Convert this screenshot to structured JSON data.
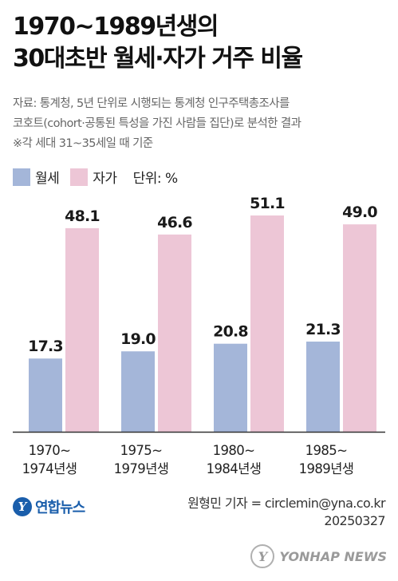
{
  "title_lines": [
    "1970~1989년생의",
    "30대초반 월세·자가 거주 비율"
  ],
  "subtitle_lines": [
    "자료: 통계청, 5년 단위로 시행되는 통계청 인구주택총조사를",
    "코호트(cohort·공통된 특성을 가진 사람들 집단)로 분석한 결과",
    "※각 세대 31~35세일 때 기준"
  ],
  "legend": {
    "wolse": "월세",
    "jaga": "자가",
    "unit": "단위: %"
  },
  "colors": {
    "wolse": "#a4b6d9",
    "jaga": "#edc6d6",
    "axis": "#333333"
  },
  "chart_data": {
    "type": "bar",
    "categories": [
      [
        "1970~",
        "1974년생"
      ],
      [
        "1975~",
        "1979년생"
      ],
      [
        "1980~",
        "1984년생"
      ],
      [
        "1985~",
        "1989년생"
      ]
    ],
    "series": [
      {
        "name": "월세",
        "values": [
          17.3,
          19.0,
          20.8,
          21.3
        ],
        "labels": [
          "17.3",
          "19.0",
          "20.8",
          "21.3"
        ]
      },
      {
        "name": "자가",
        "values": [
          48.1,
          46.6,
          51.1,
          49.0
        ],
        "labels": [
          "48.1",
          "46.6",
          "51.1",
          "49.0"
        ]
      }
    ],
    "ylim": [
      0,
      56
    ],
    "grid": false,
    "legend_position": "top-left"
  },
  "footer": {
    "logo_mark": "Y",
    "logo_text": "연합뉴스",
    "credit_lines": [
      "원형민 기자 = circlemin@yna.co.kr",
      "20250327"
    ],
    "watermark_text": "YONHAP NEWS"
  }
}
